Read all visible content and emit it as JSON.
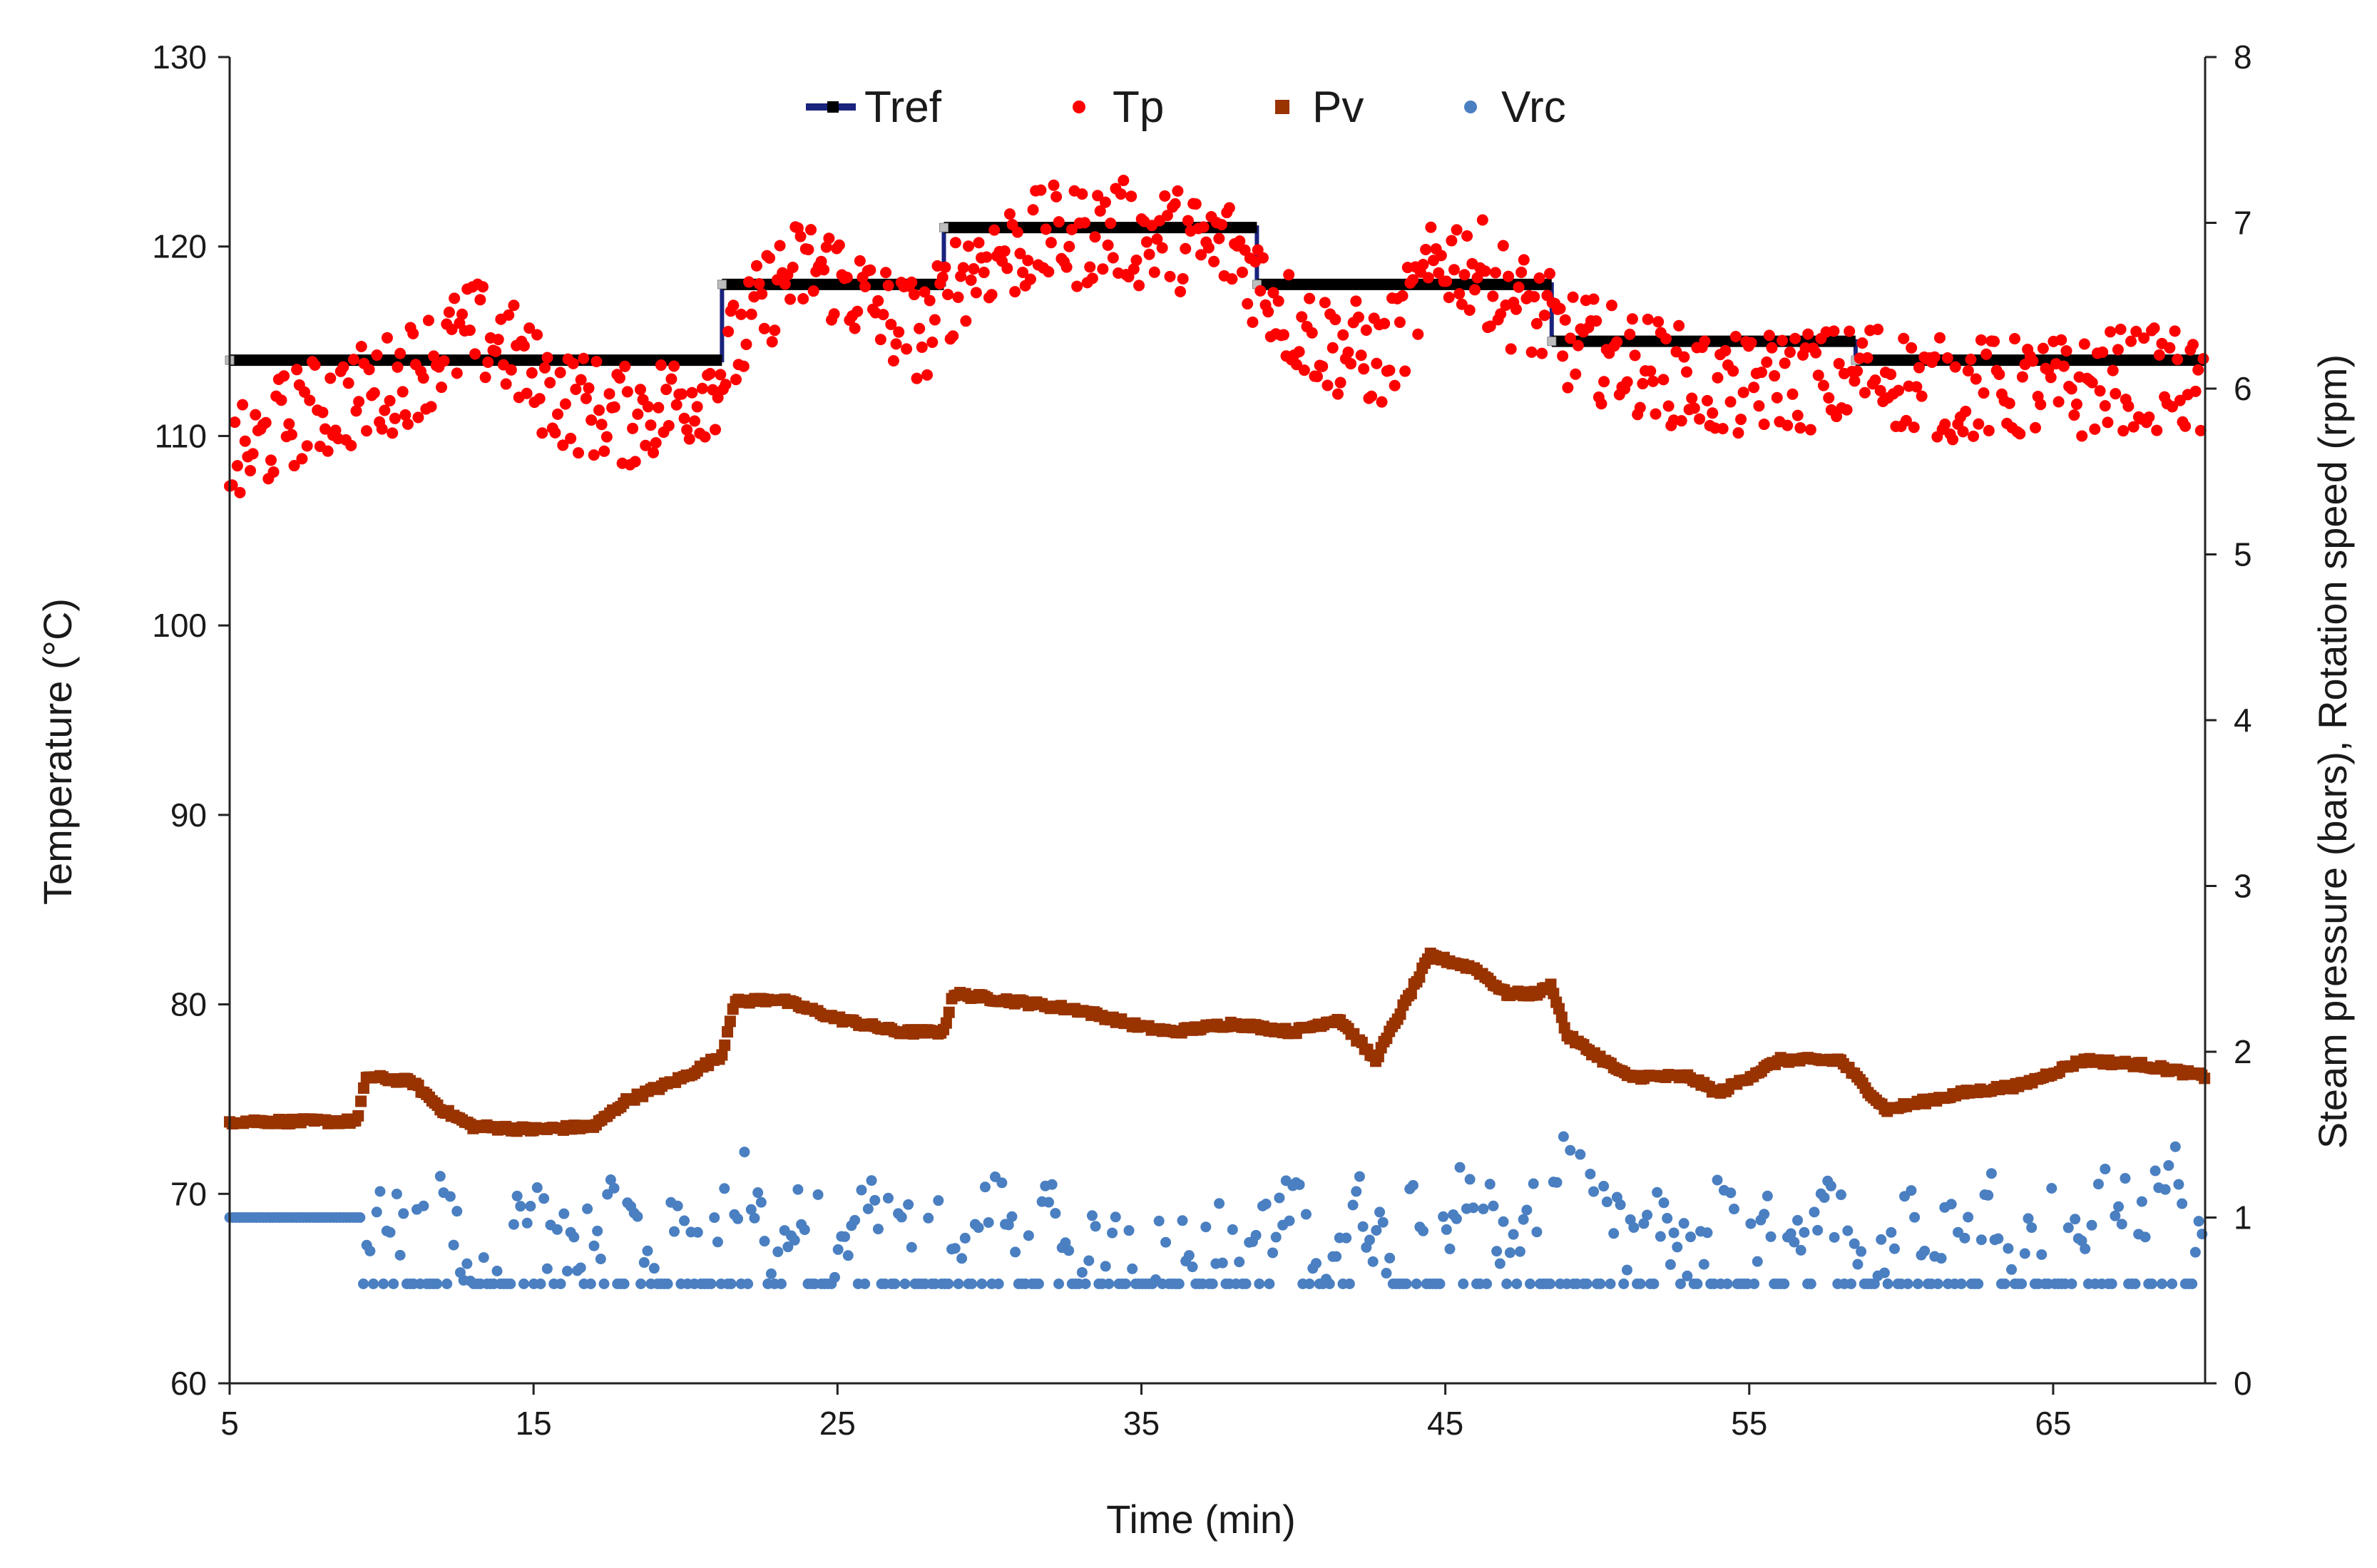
{
  "chart_data": {
    "type": "scatter",
    "title": "",
    "xlabel": "Time (min)",
    "ylabel_left": "Temperature (°C)",
    "ylabel_right": "Steam pressure (bars), Rotation speed (rpm)",
    "xlim": [
      5,
      70
    ],
    "ylim_left": [
      60,
      130
    ],
    "ylim_right": [
      0,
      8
    ],
    "x_ticks": [
      5,
      15,
      25,
      35,
      45,
      55,
      65
    ],
    "x_tick_labels": [
      "5",
      "15",
      "25",
      "35",
      "45",
      "55",
      "65"
    ],
    "y_left_ticks": [
      60,
      70,
      80,
      90,
      100,
      110,
      120,
      130
    ],
    "y_left_tick_labels": [
      "60",
      "70",
      "80",
      "90",
      "100",
      "110",
      "120",
      "130"
    ],
    "y_right_ticks": [
      0,
      1,
      2,
      3,
      4,
      5,
      6,
      7,
      8
    ],
    "y_right_tick_labels": [
      "0",
      "1",
      "2",
      "3",
      "4",
      "5",
      "6",
      "7",
      "8"
    ],
    "grid": false,
    "legend_position": "top-center",
    "series": [
      {
        "name": "Tref",
        "kind": "step-line",
        "axis": "left",
        "color": "#000000",
        "edge_color": "#1a237e",
        "x": [
          5,
          21.2,
          21.2,
          28.5,
          28.5,
          38.8,
          38.8,
          48.5,
          48.5,
          58.5,
          58.5,
          70
        ],
        "y": [
          114,
          114,
          118,
          118,
          121,
          121,
          118,
          118,
          115,
          115,
          114,
          114
        ]
      },
      {
        "name": "Tp",
        "kind": "markers",
        "axis": "left",
        "color": "#ff0000",
        "x": [
          5,
          6,
          7,
          8,
          9,
          10,
          11,
          12,
          13,
          14,
          15,
          16,
          17,
          18,
          19,
          20,
          21,
          22,
          23,
          24,
          25,
          26,
          27,
          28,
          29,
          30,
          31,
          32,
          33,
          34,
          35,
          36,
          37,
          38,
          39,
          40,
          41,
          42,
          43,
          44,
          45,
          46,
          47,
          48,
          49,
          50,
          51,
          52,
          53,
          54,
          55,
          56,
          57,
          58,
          59,
          60,
          61,
          62,
          63,
          64,
          65,
          66,
          67,
          68,
          69,
          70
        ],
        "y": [
          108.5,
          109.5,
          111,
          111.5,
          112,
          112.5,
          113.5,
          114.5,
          115.5,
          115,
          113,
          112,
          111.5,
          111,
          111.5,
          112,
          113,
          115.5,
          118,
          119,
          118.5,
          117,
          116,
          115.5,
          118.5,
          119.5,
          120,
          120.5,
          120.5,
          121,
          120.5,
          120.5,
          120,
          120,
          118,
          116,
          115,
          114.5,
          114,
          117,
          119.5,
          119,
          117.5,
          116.5,
          115,
          114.5,
          114,
          113.5,
          113,
          112.5,
          112.5,
          113,
          113,
          113,
          113.5,
          113,
          112.5,
          112.5,
          112.5,
          112.5,
          112.5,
          112.5,
          113,
          113,
          113,
          112
        ]
      },
      {
        "name": "Pv",
        "kind": "markers",
        "axis": "right",
        "color": "#993300",
        "x": [
          5,
          9.2,
          9.5,
          11,
          12,
          13,
          15,
          17,
          18,
          20,
          21.2,
          21.6,
          23,
          25,
          27,
          28.5,
          28.8,
          31,
          33,
          35,
          36,
          38,
          40,
          41.5,
          42.7,
          44.5,
          46,
          47,
          48,
          48.5,
          49,
          51,
          53,
          54,
          56,
          58,
          59.5,
          62,
          64,
          66,
          68,
          70
        ],
        "y": [
          1.58,
          1.58,
          1.85,
          1.82,
          1.65,
          1.55,
          1.53,
          1.55,
          1.7,
          1.85,
          1.98,
          2.3,
          2.32,
          2.2,
          2.12,
          2.12,
          2.35,
          2.3,
          2.25,
          2.15,
          2.12,
          2.17,
          2.12,
          2.2,
          1.95,
          2.58,
          2.5,
          2.35,
          2.35,
          2.4,
          2.1,
          1.85,
          1.85,
          1.75,
          1.95,
          1.95,
          1.65,
          1.75,
          1.8,
          1.95,
          1.92,
          1.85
        ]
      },
      {
        "name": "Vrc",
        "kind": "markers",
        "axis": "right",
        "color": "#4a7fc1",
        "x": [
          5,
          6,
          7,
          8,
          9,
          9.5,
          10,
          11,
          12,
          13,
          14,
          15,
          16,
          17,
          18,
          19,
          20,
          21,
          22,
          23,
          24,
          25,
          26,
          27,
          28,
          29,
          30,
          31,
          32,
          33,
          34,
          35,
          36,
          37,
          38,
          39,
          40,
          41,
          42,
          43,
          44,
          45,
          46,
          47,
          48,
          49,
          50,
          51,
          52,
          53,
          54,
          55,
          56,
          57,
          58,
          59,
          60,
          61,
          62,
          63,
          64,
          65,
          66,
          67,
          68,
          69,
          70
        ],
        "y": [
          1.0,
          1.0,
          1.0,
          1.0,
          1.0,
          0.6,
          1.1,
          0.85,
          1.05,
          0.7,
          0.95,
          1.0,
          0.8,
          0.95,
          1.05,
          0.75,
          1.0,
          0.9,
          1.2,
          0.8,
          1.05,
          0.7,
          1.15,
          0.9,
          1.0,
          0.75,
          1.1,
          0.85,
          1.0,
          0.7,
          0.95,
          0.85,
          0.75,
          1.0,
          0.8,
          0.9,
          1.05,
          0.75,
          1.1,
          0.85,
          1.2,
          0.95,
          1.3,
          0.8,
          1.0,
          1.5,
          1.0,
          0.85,
          0.95,
          0.75,
          1.05,
          0.8,
          1.0,
          0.9,
          1.15,
          0.7,
          0.95,
          1.0,
          0.85,
          1.1,
          0.8,
          1.0,
          0.9,
          1.15,
          0.95,
          1.3,
          0.8
        ],
        "baseline": 0.6
      }
    ]
  }
}
